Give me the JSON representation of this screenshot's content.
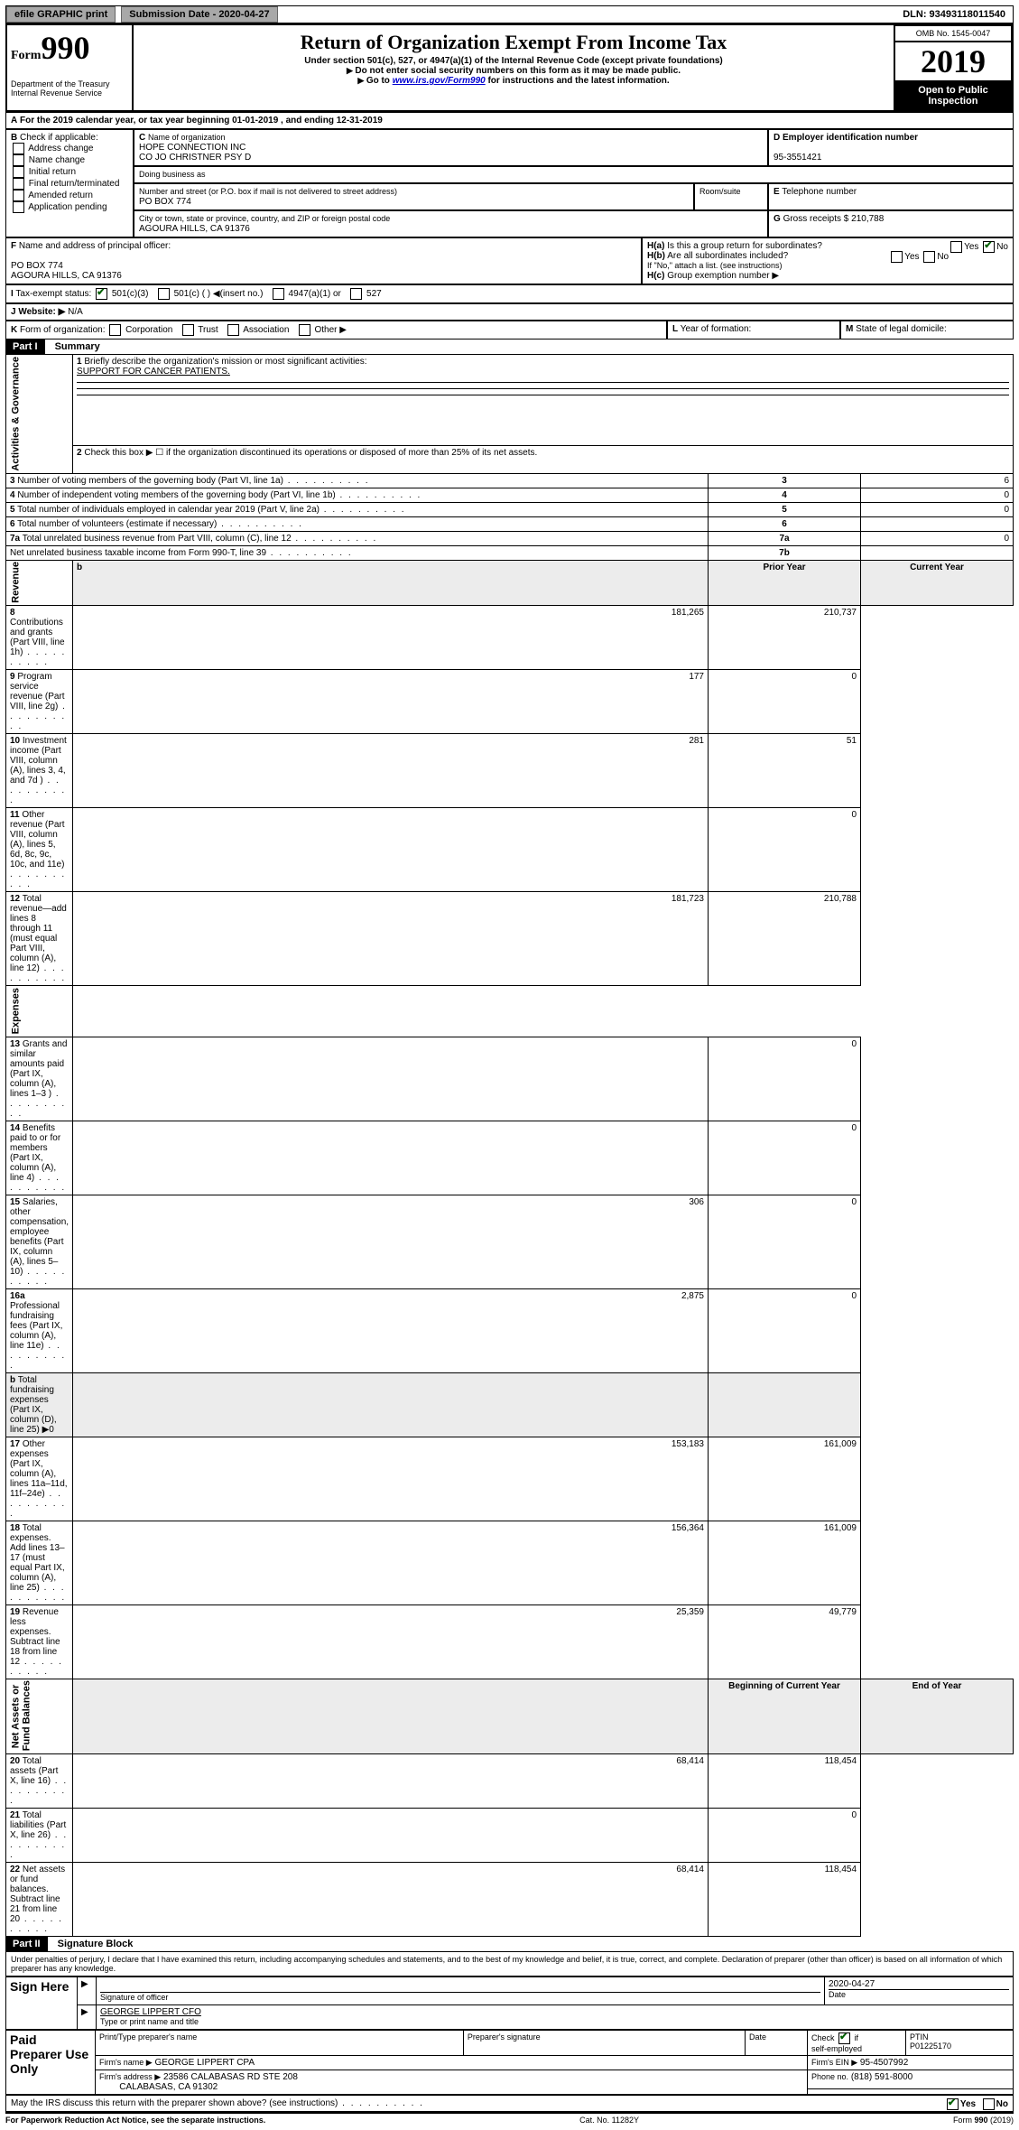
{
  "topbar": {
    "efile": "efile GRAPHIC print",
    "sub": "Submission Date - 2020-04-27",
    "dln": "DLN: 93493118011540"
  },
  "hdr": {
    "form_prefix": "Form",
    "form_no": "990",
    "omb": "OMB No. 1545-0047",
    "year": "2019",
    "title": "Return of Organization Exempt From Income Tax",
    "sub1": "Under section 501(c), 527, or 4947(a)(1) of the Internal Revenue Code (except private foundations)",
    "sub2": "Do not enter social security numbers on this form as it may be made public.",
    "sub3_pre": "Go to ",
    "sub3_url": "www.irs.gov/Form990",
    "sub3_post": " for instructions and the latest information.",
    "dept": "Department of the Treasury\nInternal Revenue Service",
    "open": "Open to Public Inspection"
  },
  "A": {
    "text": "For the 2019 calendar year, or tax year beginning 01-01-2019    , and ending 12-31-2019"
  },
  "B": {
    "label": "Check if applicable:",
    "items": [
      "Address change",
      "Name change",
      "Initial return",
      "Final return/terminated",
      "Amended return",
      "Application pending"
    ]
  },
  "C": {
    "name_lbl": "Name of organization",
    "name": "HOPE CONNECTION INC",
    "co": "CO JO CHRISTNER PSY D",
    "dba_lbl": "Doing business as",
    "addr_lbl": "Number and street (or P.O. box if mail is not delivered to street address)",
    "addr": "PO BOX 774",
    "room_lbl": "Room/suite",
    "city_lbl": "City or town, state or province, country, and ZIP or foreign postal code",
    "city": "AGOURA HILLS, CA  91376"
  },
  "D": {
    "lbl": "Employer identification number",
    "val": "95-3551421"
  },
  "E": {
    "lbl": "Telephone number"
  },
  "G": {
    "lbl": "Gross receipts $",
    "val": "210,788"
  },
  "F": {
    "lbl": "Name and address of principal officer:",
    "l1": "PO BOX 774",
    "l2": "AGOURA HILLS, CA  91376"
  },
  "H": {
    "a": "Is this a group return for subordinates?",
    "b": "Are all subordinates included?",
    "note": "If \"No,\" attach a list. (see instructions)",
    "c": "Group exemption number ▶"
  },
  "I": {
    "lbl": "Tax-exempt status:",
    "o1": "501(c)(3)",
    "o2": "501(c) (  ) ◀(insert no.)",
    "o3": "4947(a)(1) or",
    "o4": "527"
  },
  "J": {
    "lbl": "Website: ▶",
    "val": "N/A"
  },
  "K": {
    "lbl": "Form of organization:",
    "o": [
      "Corporation",
      "Trust",
      "Association",
      "Other ▶"
    ]
  },
  "L": {
    "lbl": "Year of formation:"
  },
  "M": {
    "lbl": "State of legal domicile:"
  },
  "p1": {
    "title": "Summary",
    "part": "Part I",
    "q1": "Briefly describe the organization's mission or most significant activities:",
    "q1v": "SUPPORT FOR CANCER PATIENTS.",
    "q2": "Check this box ▶ ☐  if the organization discontinued its operations or disposed of more than 25% of its net assets.",
    "rows": [
      {
        "n": "3",
        "t": "Number of voting members of the governing body (Part VI, line 1a)",
        "b": "3",
        "v": "6"
      },
      {
        "n": "4",
        "t": "Number of independent voting members of the governing body (Part VI, line 1b)",
        "b": "4",
        "v": "0"
      },
      {
        "n": "5",
        "t": "Total number of individuals employed in calendar year 2019 (Part V, line 2a)",
        "b": "5",
        "v": "0"
      },
      {
        "n": "6",
        "t": "Total number of volunteers (estimate if necessary)",
        "b": "6",
        "v": ""
      },
      {
        "n": "7a",
        "t": "Total unrelated business revenue from Part VIII, column (C), line 12",
        "b": "7a",
        "v": "0"
      },
      {
        "n": "",
        "t": "Net unrelated business taxable income from Form 990-T, line 39",
        "b": "7b",
        "v": ""
      }
    ],
    "py": "Prior Year",
    "cy": "Current Year",
    "boy": "Beginning of Current Year",
    "eoy": "End of Year",
    "rev": [
      {
        "n": "8",
        "t": "Contributions and grants (Part VIII, line 1h)",
        "p": "181,265",
        "c": "210,737"
      },
      {
        "n": "9",
        "t": "Program service revenue (Part VIII, line 2g)",
        "p": "177",
        "c": "0"
      },
      {
        "n": "10",
        "t": "Investment income (Part VIII, column (A), lines 3, 4, and 7d )",
        "p": "281",
        "c": "51"
      },
      {
        "n": "11",
        "t": "Other revenue (Part VIII, column (A), lines 5, 6d, 8c, 9c, 10c, and 11e)",
        "p": "",
        "c": "0"
      },
      {
        "n": "12",
        "t": "Total revenue—add lines 8 through 11 (must equal Part VIII, column (A), line 12)",
        "p": "181,723",
        "c": "210,788"
      }
    ],
    "exp": [
      {
        "n": "13",
        "t": "Grants and similar amounts paid (Part IX, column (A), lines 1–3 )",
        "p": "",
        "c": "0"
      },
      {
        "n": "14",
        "t": "Benefits paid to or for members (Part IX, column (A), line 4)",
        "p": "",
        "c": "0"
      },
      {
        "n": "15",
        "t": "Salaries, other compensation, employee benefits (Part IX, column (A), lines 5–10)",
        "p": "306",
        "c": "0"
      },
      {
        "n": "16a",
        "t": "Professional fundraising fees (Part IX, column (A), line 11e)",
        "p": "2,875",
        "c": "0"
      },
      {
        "n": "b",
        "t": "Total fundraising expenses (Part IX, column (D), line 25) ▶0",
        "p": "",
        "c": "",
        "shade": true
      },
      {
        "n": "17",
        "t": "Other expenses (Part IX, column (A), lines 11a–11d, 11f–24e)",
        "p": "153,183",
        "c": "161,009"
      },
      {
        "n": "18",
        "t": "Total expenses. Add lines 13–17 (must equal Part IX, column (A), line 25)",
        "p": "156,364",
        "c": "161,009"
      },
      {
        "n": "19",
        "t": "Revenue less expenses. Subtract line 18 from line 12",
        "p": "25,359",
        "c": "49,779"
      }
    ],
    "na": [
      {
        "n": "20",
        "t": "Total assets (Part X, line 16)",
        "p": "68,414",
        "c": "118,454"
      },
      {
        "n": "21",
        "t": "Total liabilities (Part X, line 26)",
        "p": "",
        "c": "0"
      },
      {
        "n": "22",
        "t": "Net assets or fund balances. Subtract line 21 from line 20",
        "p": "68,414",
        "c": "118,454"
      }
    ],
    "sections": {
      "ag": "Activities & Governance",
      "rev": "Revenue",
      "exp": "Expenses",
      "na": "Net Assets or\nFund Balances"
    }
  },
  "p2": {
    "part": "Part II",
    "title": "Signature Block",
    "decl": "Under penalties of perjury, I declare that I have examined this return, including accompanying schedules and statements, and to the best of my knowledge and belief, it is true, correct, and complete. Declaration of preparer (other than officer) is based on all information of which preparer has any knowledge.",
    "sign": "Sign Here",
    "sol": "Signature of officer",
    "date": "2020-04-27",
    "date_lbl": "Date",
    "off": "GEORGE LIPPERT CFO",
    "off_lbl": "Type or print name and title",
    "paid": "Paid Preparer Use Only",
    "c": {
      "c1": "Print/Type preparer's name",
      "c2": "Preparer's signature",
      "c3": "Date",
      "c4": "Check ☑ if self-employed",
      "c5": "PTIN"
    },
    "ptin": "P01225170",
    "firm_lbl": "Firm's name  ▶",
    "firm": "GEORGE LIPPERT CPA",
    "ein_lbl": "Firm's EIN ▶",
    "ein": "95-4507992",
    "faddr_lbl": "Firm's address ▶",
    "faddr1": "23586 CALABASAS RD STE 208",
    "faddr2": "CALABASAS, CA  91302",
    "ph_lbl": "Phone no.",
    "ph": "(818) 591-8000",
    "discuss": "May the IRS discuss this return with the preparer shown above? (see instructions)",
    "ftr1": "For Paperwork Reduction Act Notice, see the separate instructions.",
    "cat": "Cat. No. 11282Y",
    "ftr2": "Form 990 (2019)"
  }
}
